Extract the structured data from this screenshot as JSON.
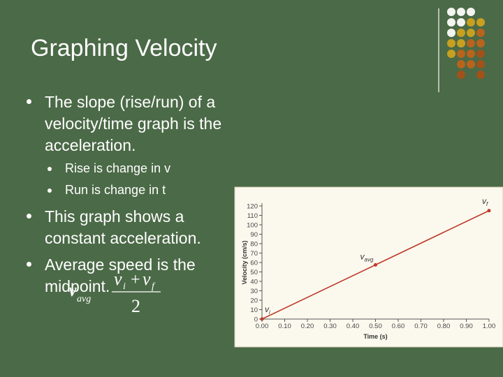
{
  "title": "Graphing Velocity",
  "bullets": [
    {
      "text": "The slope (rise/run) of a velocity/time graph is the acceleration.",
      "sub_bullets": [
        "Rise is change in v",
        "Run is change in t"
      ]
    },
    {
      "text": "This graph shows a constant acceleration."
    },
    {
      "text": "Average speed is the midpoint."
    }
  ],
  "formula": {
    "lhs": "v",
    "lhs_sub": "avg",
    "num_a": "v",
    "num_a_sub": "i",
    "plus": "+",
    "num_b": "v",
    "num_b_sub": "f",
    "den": "2"
  },
  "chart_data": {
    "type": "line",
    "x_label": "Time (s)",
    "y_label": "Velocity (cm/s)",
    "x": [
      0,
      0.5,
      1.0
    ],
    "series": [
      {
        "color": "#c0392b",
        "values": [
          0,
          57.5,
          115
        ]
      }
    ],
    "point_labels": [
      {
        "base": "v",
        "sub": "i"
      },
      {
        "base": "v",
        "sub": "avg"
      },
      {
        "base": "v",
        "sub": "f"
      }
    ],
    "xlim": [
      0,
      1.0
    ],
    "ylim": [
      0,
      120
    ],
    "xticks": [
      {
        "value": 0,
        "label": "0.00"
      },
      {
        "value": 0.1,
        "label": "0.10"
      },
      {
        "value": 0.2,
        "label": "0.20"
      },
      {
        "value": 0.3,
        "label": "0.30"
      },
      {
        "value": 0.4,
        "label": "0.40"
      },
      {
        "value": 0.5,
        "label": "0.50"
      },
      {
        "value": 0.6,
        "label": "0.60"
      },
      {
        "value": 0.7,
        "label": "0.70"
      },
      {
        "value": 0.8,
        "label": "0.80"
      },
      {
        "value": 0.9,
        "label": "0.90"
      },
      {
        "value": 1.0,
        "label": "1.00"
      }
    ],
    "yticks": [
      0,
      10,
      20,
      30,
      40,
      50,
      60,
      70,
      80,
      90,
      100,
      110,
      120
    ]
  }
}
